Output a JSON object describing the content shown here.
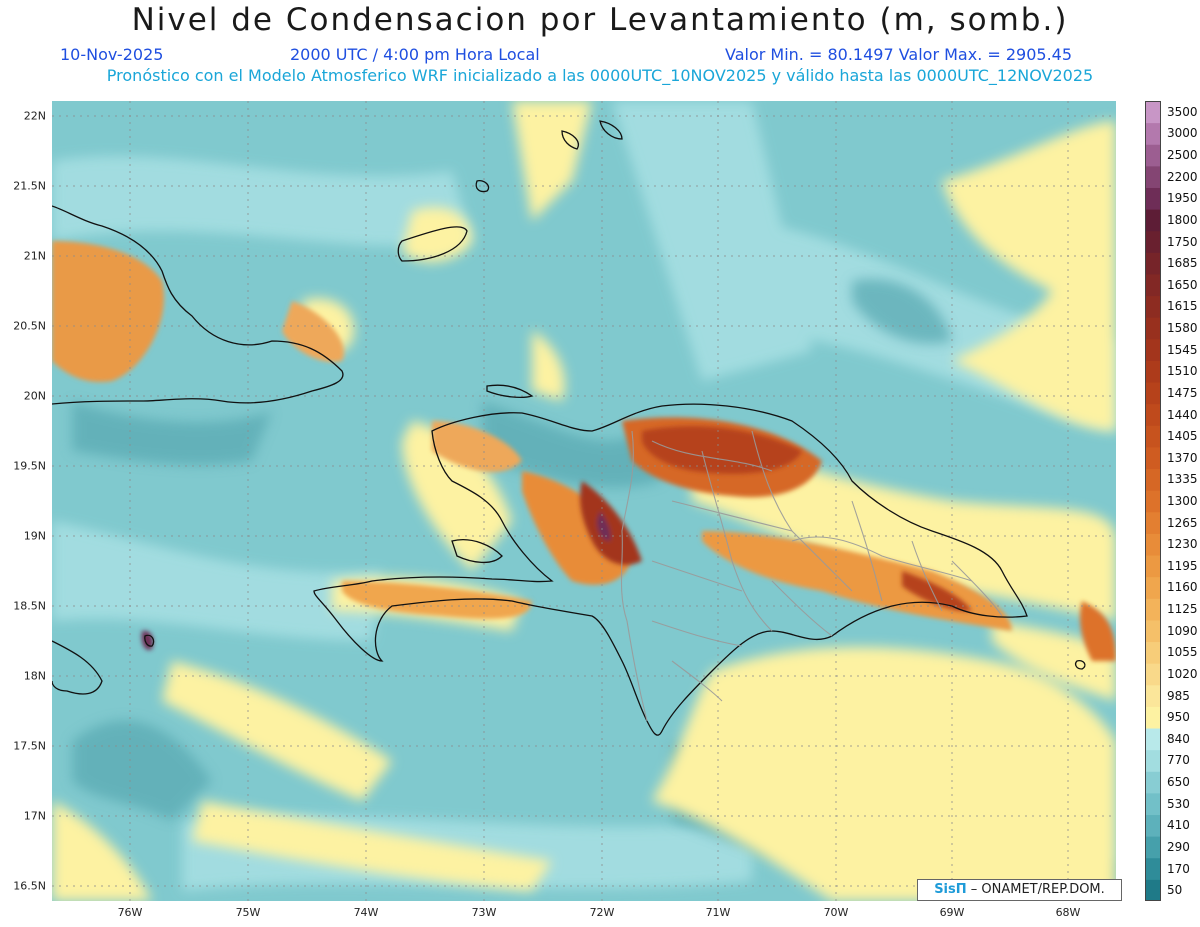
{
  "header": {
    "title": "Nivel de Condensacion por Levantamiento (m, somb.)",
    "date": "10-Nov-2025",
    "time": "2000 UTC / 4:00 pm Hora Local",
    "minmax": "Valor Min. = 80.1497  Valor Max. = 2905.45",
    "forecast": "Pronóstico con el Modelo Atmosferico WRF inicializado a las 0000UTC_10NOV2025 y válido hasta las  0000UTC_12NOV2025"
  },
  "map": {
    "lat_labels": [
      "22N",
      "21.5N",
      "21N",
      "20.5N",
      "20N",
      "19.5N",
      "19N",
      "18.5N",
      "18N",
      "17.5N",
      "17N",
      "16.5N"
    ],
    "lon_labels": [
      "76W",
      "75W",
      "74W",
      "73W",
      "72W",
      "71W",
      "70W",
      "69W",
      "68W"
    ],
    "lat_values": [
      22,
      21.5,
      21,
      20.5,
      20,
      19.5,
      19,
      18.5,
      18,
      17.5,
      17,
      16.5
    ],
    "lon_values": [
      76,
      75,
      74,
      73,
      72,
      71,
      70,
      69,
      68
    ]
  },
  "colorbar": {
    "labels": [
      "50",
      "170",
      "290",
      "410",
      "530",
      "650",
      "770",
      "840",
      "950",
      "985",
      "1020",
      "1055",
      "1090",
      "1125",
      "1160",
      "1195",
      "1230",
      "1265",
      "1300",
      "1335",
      "1370",
      "1405",
      "1440",
      "1475",
      "1510",
      "1545",
      "1580",
      "1615",
      "1650",
      "1685",
      "1750",
      "1800",
      "1950",
      "2200",
      "2500",
      "3000",
      "3500"
    ],
    "colors": [
      "#1f7a88",
      "#2f8c99",
      "#46a0ab",
      "#5db1bb",
      "#72c0c8",
      "#88cdd3",
      "#a2dde0",
      "#b8e9ea",
      "#fdf2a2",
      "#fbe69a",
      "#f9d98a",
      "#f7cd79",
      "#f5c069",
      "#f3b35a",
      "#f0a64d",
      "#ec9942",
      "#e88c39",
      "#e37f31",
      "#dd722a",
      "#d66725",
      "#cf5c21",
      "#c7531e",
      "#bf4a1c",
      "#b6421b",
      "#ad3b1b",
      "#a3351c",
      "#98301e",
      "#8d2c21",
      "#822825",
      "#762429",
      "#69202f",
      "#5d1d36",
      "#6e2d57",
      "#844573",
      "#9c5e91",
      "#b379ad",
      "#c896c6"
    ]
  },
  "credit": {
    "logo": "SisΠ",
    "text": "– ONAMET/REP.DOM."
  },
  "colors": {
    "ocean": "#80c9ce",
    "ocean_dark": "#5fb0b8",
    "yellow": "#fdf2a2",
    "orange": "#e88c39",
    "brown": "#b6421b",
    "purple": "#6e2d57",
    "coast": "#111111",
    "province": "#9a9a9a"
  }
}
